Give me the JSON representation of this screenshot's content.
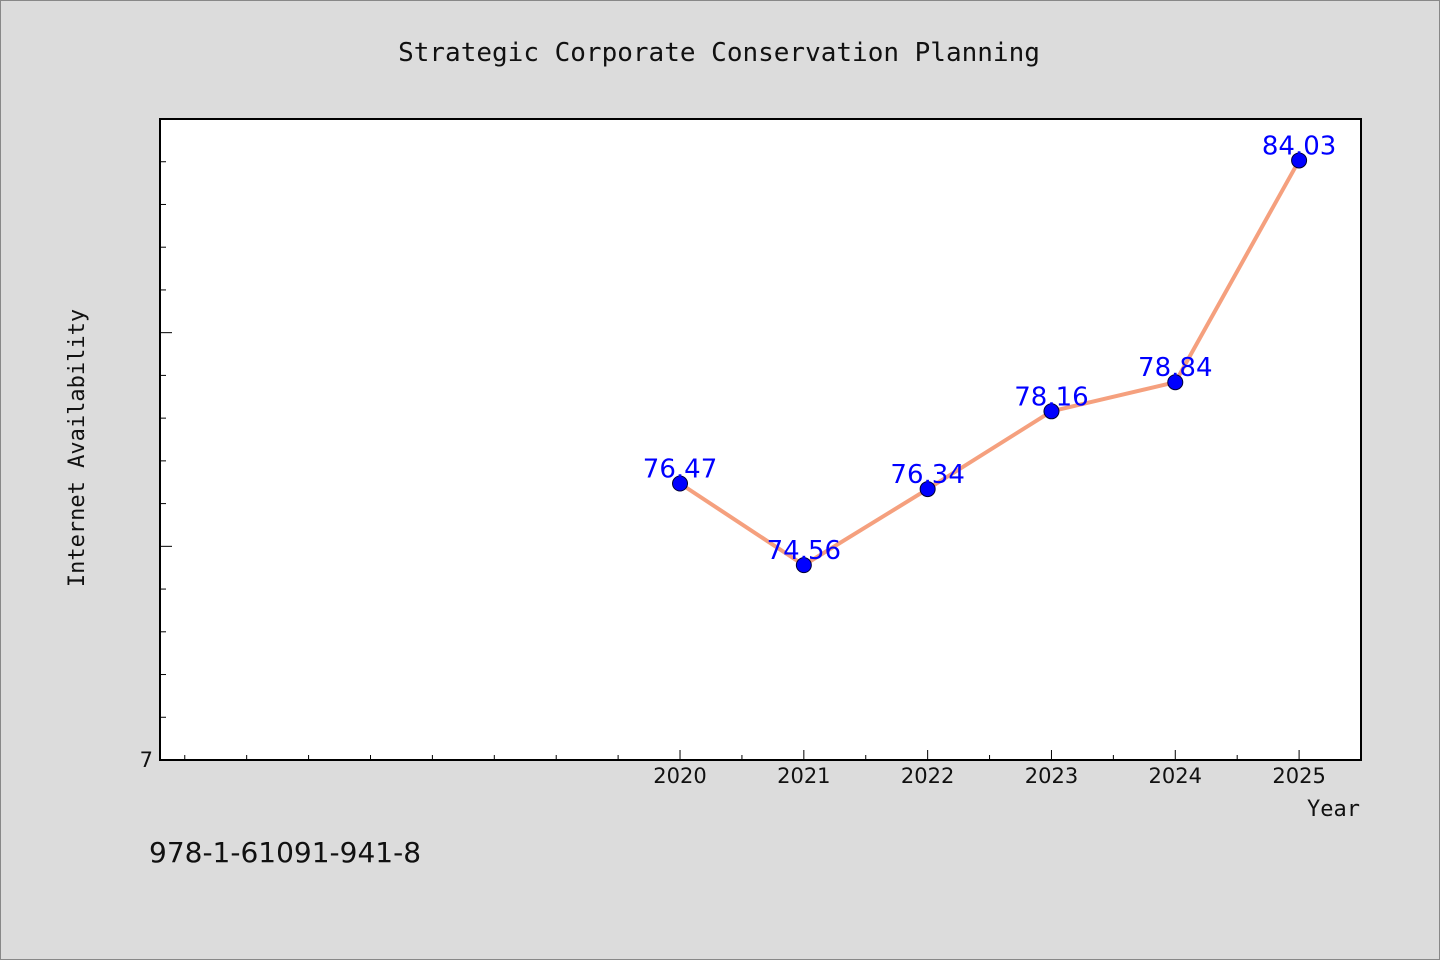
{
  "chart_data": {
    "type": "line",
    "title": "Strategic Corporate Conservation Planning",
    "xlabel": "Year",
    "ylabel": "Internet Availability",
    "x": [
      2020,
      2021,
      2022,
      2023,
      2024,
      2025
    ],
    "series": [
      {
        "values": [
          76.47,
          74.56,
          76.34,
          78.16,
          78.84,
          84.03
        ],
        "data_labels": [
          "76.47",
          "74.56",
          "76.34",
          "78.16",
          "78.84",
          "84.03"
        ],
        "line_color": "#f5a07e",
        "marker_color": "#0000ff"
      }
    ],
    "xlim": [
      2015.8,
      2025.5
    ],
    "ylim": [
      70,
      85
    ],
    "x_tick_labels": [
      "2020",
      "2021",
      "2022",
      "2023",
      "2024",
      "2025"
    ],
    "y_tick_labels": [
      "7"
    ],
    "grid": false,
    "legend": "none",
    "label_color": "#0000ff"
  },
  "footer": {
    "isbn": "978-1-61091-941-8"
  },
  "colors": {
    "background": "#dcdcdc",
    "plot_area": "#ffffff"
  }
}
